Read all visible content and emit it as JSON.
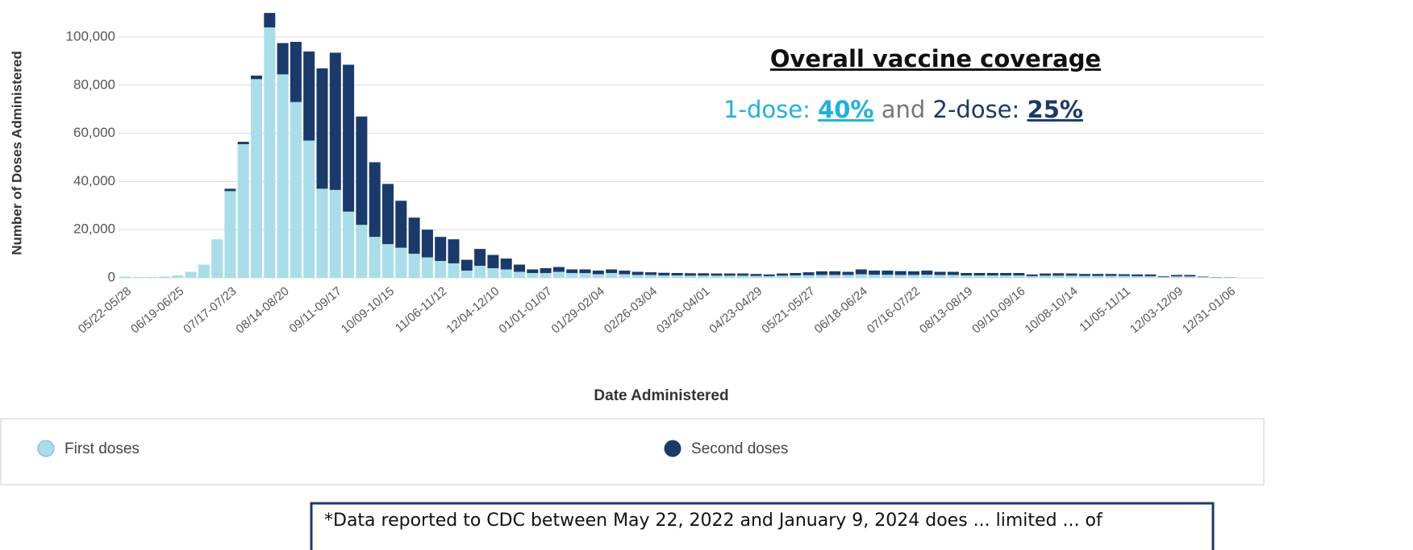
{
  "chart_data": {
    "type": "stacked_bar",
    "xlabel": "Date Administered",
    "ylabel": "Number of Doses Administered",
    "categories": [
      "05/22-05/28",
      null,
      null,
      null,
      "06/19-06/25",
      null,
      null,
      null,
      "07/17-07/23",
      null,
      null,
      null,
      "08/14-08/20",
      null,
      null,
      null,
      "09/11-09/17",
      null,
      null,
      null,
      "10/09-10/15",
      null,
      null,
      null,
      "11/06-11/12",
      null,
      null,
      null,
      "12/04-12/10",
      null,
      null,
      null,
      "01/01-01/07",
      null,
      null,
      null,
      "01/29-02/04",
      null,
      null,
      null,
      "02/26-03/04",
      null,
      null,
      null,
      "03/26-04/01",
      null,
      null,
      null,
      "04/23-04/29",
      null,
      null,
      null,
      "05/21-05/27",
      null,
      null,
      null,
      "06/18-06/24",
      null,
      null,
      null,
      "07/16-07/22",
      null,
      null,
      null,
      "08/13-08/19",
      null,
      null,
      null,
      "09/10-09/16",
      null,
      null,
      null,
      "10/08-10/14",
      null,
      null,
      null,
      "11/05-11/11",
      null,
      null,
      null,
      "12/03-12/09",
      null,
      null,
      null,
      "12/31-01/06"
    ],
    "series": [
      {
        "name": "First doses",
        "color": "#a8dde9",
        "values": [
          500,
          300,
          300,
          500,
          1000,
          2500,
          5500,
          16000,
          36000,
          55500,
          82500,
          104000,
          84500,
          73000,
          57000,
          37000,
          36500,
          27500,
          22000,
          17000,
          14000,
          12500,
          10000,
          8500,
          7000,
          6000,
          3000,
          5000,
          4000,
          3500,
          2500,
          2000,
          2000,
          2500,
          2000,
          2000,
          1500,
          2000,
          1500,
          1200,
          1200,
          1000,
          1000,
          900,
          900,
          900,
          900,
          900,
          800,
          700,
          900,
          1000,
          1100,
          1200,
          1200,
          1200,
          1500,
          1300,
          1300,
          1200,
          1200,
          1300,
          1200,
          1200,
          1000,
          1000,
          1000,
          1000,
          1000,
          700,
          900,
          900,
          900,
          800,
          800,
          800,
          800,
          700,
          700,
          300,
          600,
          600,
          300,
          200,
          100
        ]
      },
      {
        "name": "Second doses",
        "color": "#1a3a6b",
        "values": [
          0,
          0,
          0,
          0,
          0,
          0,
          0,
          0,
          1000,
          1000,
          1500,
          6000,
          13000,
          25000,
          37000,
          50000,
          57000,
          61000,
          45000,
          31000,
          25000,
          19500,
          15000,
          11500,
          10000,
          10000,
          4500,
          7000,
          5500,
          4500,
          3000,
          1500,
          2000,
          2000,
          1500,
          1500,
          1500,
          1500,
          1500,
          1300,
          1100,
          1100,
          1000,
          1000,
          1000,
          900,
          900,
          900,
          800,
          700,
          900,
          1000,
          1200,
          1500,
          1500,
          1300,
          2000,
          1700,
          1700,
          1600,
          1500,
          1700,
          1300,
          1300,
          1000,
          1000,
          1000,
          1000,
          1000,
          700,
          900,
          1000,
          900,
          800,
          800,
          800,
          700,
          700,
          700,
          300,
          600,
          600,
          200,
          100,
          100
        ]
      }
    ],
    "ylim": [
      0,
      105000
    ],
    "yticks": [
      0,
      {
        "value": 20000,
        "label": "20,000"
      },
      {
        "value": 40000,
        "label": "40,000"
      },
      {
        "value": 60000,
        "label": "60,000"
      },
      {
        "value": 80000,
        "label": "80,000"
      },
      {
        "value": 100000,
        "label": "100,000"
      }
    ],
    "grid": true,
    "legend": "bottom",
    "annotation": {
      "heading": "Overall vaccine coverage",
      "one_dose": "1-dose: ",
      "one_dose_value": "40%",
      "joiner": " and ",
      "two_dose": "2-dose: ",
      "two_dose_value": "25%"
    },
    "footnote": "*Data reported to CDC between May 22, 2022 and January 9, 2024 does ... limited ... of"
  }
}
